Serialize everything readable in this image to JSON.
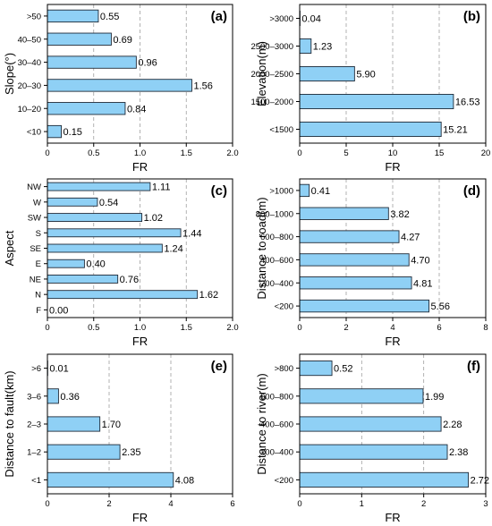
{
  "figure": {
    "bar_color": "#8fd0f5",
    "bar_edge_color": "#1f2a38",
    "grid_color": "#a0a0a0"
  },
  "chart_data": [
    {
      "tag": "(a)",
      "type": "bar",
      "orientation": "horizontal",
      "ylabel": "Slope(°)",
      "xlabel": "FR",
      "categories": [
        ">50",
        "40–50",
        "30–40",
        "20–30",
        "10–20",
        "<10"
      ],
      "values": [
        0.55,
        0.69,
        0.96,
        1.56,
        0.84,
        0.15
      ],
      "value_labels": [
        "0.55",
        "0.69",
        "0.96",
        "1.56",
        "0.84",
        "0.15"
      ],
      "xlim": [
        0,
        2.0
      ],
      "xticks": [
        0,
        0.5,
        1.0,
        1.5,
        2.0
      ],
      "xtick_labels": [
        "0",
        "0.5",
        "1.0",
        "1.5",
        "2.0"
      ],
      "grid": "vertical dashed"
    },
    {
      "tag": "(b)",
      "type": "bar",
      "orientation": "horizontal",
      "ylabel": "Elevation(m)",
      "xlabel": "FR",
      "categories": [
        ">3000",
        "2500–3000",
        "2000–2500",
        "1500–2000",
        "<1500"
      ],
      "values": [
        0.04,
        1.23,
        5.9,
        16.53,
        15.21
      ],
      "value_labels": [
        "0.04",
        "1.23",
        "5.90",
        "16.53",
        "15.21"
      ],
      "xlim": [
        0,
        20
      ],
      "xticks": [
        0,
        5,
        10,
        15,
        20
      ],
      "xtick_labels": [
        "0",
        "5",
        "10",
        "15",
        "20"
      ],
      "grid": "vertical dashed"
    },
    {
      "tag": "(c)",
      "type": "bar",
      "orientation": "horizontal",
      "ylabel": "Aspect",
      "xlabel": "FR",
      "categories": [
        "NW",
        "W",
        "SW",
        "S",
        "SE",
        "E",
        "NE",
        "N",
        "F"
      ],
      "values": [
        1.11,
        0.54,
        1.02,
        1.44,
        1.24,
        0.4,
        0.76,
        1.62,
        0.0
      ],
      "value_labels": [
        "1.11",
        "0.54",
        "1.02",
        "1.44",
        "1.24",
        "0.40",
        "0.76",
        "1.62",
        "0.00"
      ],
      "xlim": [
        0,
        2.0
      ],
      "xticks": [
        0,
        0.5,
        1.0,
        1.5,
        2.0
      ],
      "xtick_labels": [
        "0",
        "0.5",
        "1.0",
        "1.5",
        "2.0"
      ],
      "grid": "vertical dashed"
    },
    {
      "tag": "(d)",
      "type": "bar",
      "orientation": "horizontal",
      "ylabel": "Distance to road(m)",
      "xlabel": "FR",
      "categories": [
        ">1000",
        "800–1000",
        "600–800",
        "400–600",
        "200–400",
        "<200"
      ],
      "values": [
        0.41,
        3.82,
        4.27,
        4.7,
        4.81,
        5.56
      ],
      "value_labels": [
        "0.41",
        "3.82",
        "4.27",
        "4.70",
        "4.81",
        "5.56"
      ],
      "xlim": [
        0,
        8
      ],
      "xticks": [
        0,
        2,
        4,
        6,
        8
      ],
      "xtick_labels": [
        "0",
        "2",
        "4",
        "6",
        "8"
      ],
      "grid": "vertical dashed"
    },
    {
      "tag": "(e)",
      "type": "bar",
      "orientation": "horizontal",
      "ylabel": "Distance to fault(km)",
      "xlabel": "FR",
      "categories": [
        ">6",
        "3–6",
        "2–3",
        "1–2",
        "<1"
      ],
      "values": [
        0.01,
        0.36,
        1.7,
        2.35,
        4.08
      ],
      "value_labels": [
        "0.01",
        "0.36",
        "1.70",
        "2.35",
        "4.08"
      ],
      "xlim": [
        0,
        6
      ],
      "xticks": [
        0,
        2,
        4,
        6
      ],
      "xtick_labels": [
        "0",
        "2",
        "4",
        "6"
      ],
      "grid": "vertical dashed"
    },
    {
      "tag": "(f)",
      "type": "bar",
      "orientation": "horizontal",
      "ylabel": "Distance to river(m)",
      "xlabel": "FR",
      "categories": [
        ">800",
        "600–800",
        "400–600",
        "200–400",
        "<200"
      ],
      "values": [
        0.52,
        1.99,
        2.28,
        2.38,
        2.72
      ],
      "value_labels": [
        "0.52",
        "1.99",
        "2.28",
        "2.38",
        "2.72"
      ],
      "xlim": [
        0,
        3
      ],
      "xticks": [
        0,
        1,
        2,
        3
      ],
      "xtick_labels": [
        "0",
        "1",
        "2",
        "3"
      ],
      "grid": "vertical dashed"
    }
  ]
}
